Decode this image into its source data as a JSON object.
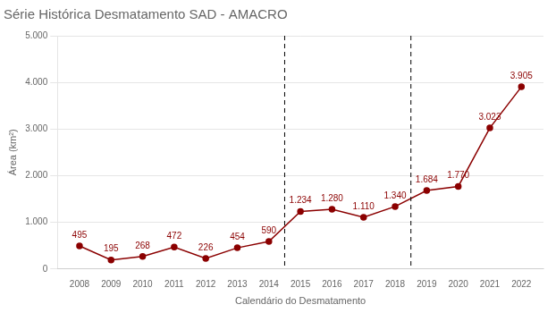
{
  "chart_data": {
    "type": "line",
    "title": "Série Histórica Desmatamento SAD - AMACRO",
    "xlabel": "Calendário do Desmatamento",
    "ylabel": "Área (km²)",
    "x": [
      2008,
      2009,
      2010,
      2011,
      2012,
      2013,
      2014,
      2015,
      2016,
      2017,
      2018,
      2019,
      2020,
      2021,
      2022
    ],
    "values": [
      495,
      195,
      268,
      472,
      226,
      454,
      590,
      1234,
      1280,
      1110,
      1340,
      1684,
      1770,
      3023,
      3905
    ],
    "value_labels": [
      "495",
      "195",
      "268",
      "472",
      "226",
      "454",
      "590",
      "1.234",
      "1.280",
      "1.110",
      "1.340",
      "1.684",
      "1.770",
      "3.023",
      "3.905"
    ],
    "data_labels": true,
    "color": "#8b0000",
    "marker": "circle",
    "xlim": [
      2007.3,
      2022.7
    ],
    "xticks": [
      2008,
      2009,
      2010,
      2011,
      2012,
      2013,
      2014,
      2015,
      2016,
      2017,
      2018,
      2019,
      2020,
      2021,
      2022
    ],
    "ylim": [
      0,
      5000
    ],
    "yticks": [
      0,
      {
        "value": 1000,
        "label": "1.000"
      },
      {
        "value": 2000,
        "label": "2.000"
      },
      {
        "value": 3000,
        "label": "3.000"
      },
      {
        "value": 4000,
        "label": "4.000"
      },
      {
        "value": 5000,
        "label": "5.000"
      }
    ],
    "vlines": [
      {
        "x": 2014.5,
        "color": "#000000",
        "line_style": "dashed"
      },
      {
        "x": 2018.5,
        "color": "#000000",
        "line_style": "dashed"
      }
    ],
    "grid": "y"
  }
}
